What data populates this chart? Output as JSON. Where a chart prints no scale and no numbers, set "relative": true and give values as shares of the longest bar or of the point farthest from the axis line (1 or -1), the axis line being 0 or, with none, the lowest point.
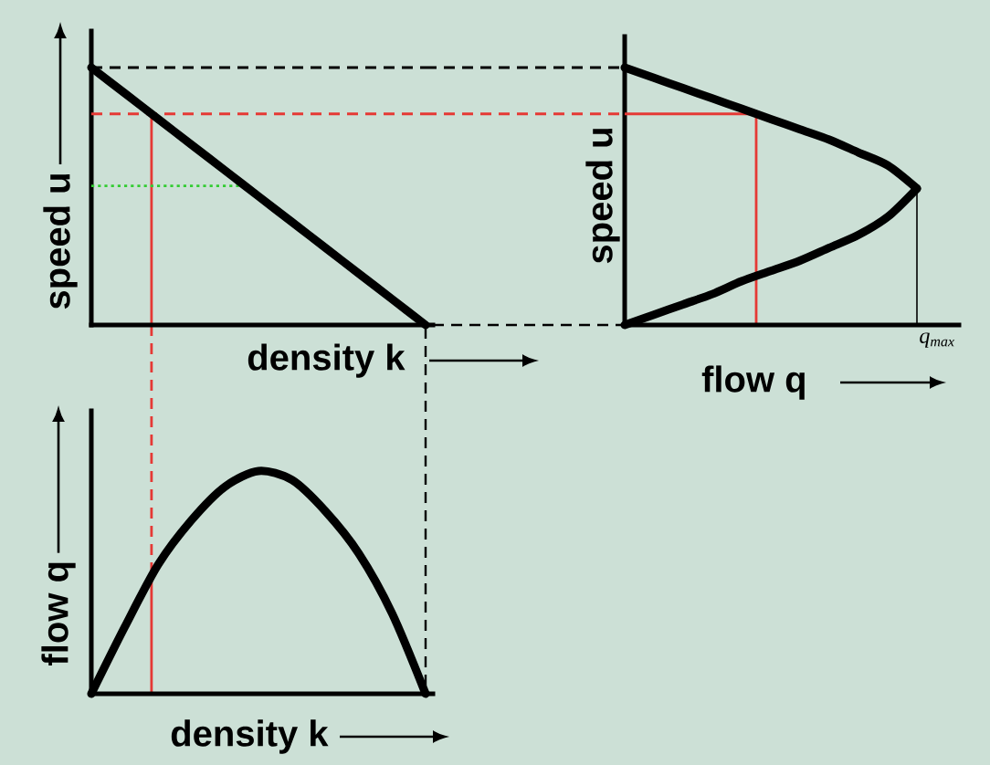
{
  "chart_data": [
    {
      "type": "line",
      "relative": true,
      "xlabel": "density k",
      "ylabel": "speed u",
      "categories": [
        null,
        null,
        null,
        null,
        null,
        null,
        null,
        null,
        null,
        null,
        null
      ],
      "values": [
        1,
        0.9,
        0.8,
        0.7,
        0.6,
        0.5,
        0.4,
        0.3,
        0.2,
        0.1,
        0
      ],
      "color": "#000000",
      "ref_lines": [
        {
          "axis": "y",
          "value": 1,
          "color": "#000000",
          "line_style": "dashed"
        },
        {
          "axis": "y",
          "value": 0.82,
          "color": "#e53935",
          "line_style": "dashed"
        },
        {
          "axis": "y",
          "value": 0.54,
          "color": "#33cc33",
          "line_style": "dotted"
        }
      ]
    },
    {
      "type": "line",
      "relative": true,
      "xlabel": "flow q",
      "ylabel": "speed u",
      "categories": [
        null,
        null,
        null,
        null,
        null,
        null,
        null,
        null,
        null,
        null,
        null
      ],
      "series": [
        {
          "color": "#000000",
          "values": [
            1,
            0.96,
            0.92,
            0.88,
            0.84,
            0.8,
            0.76,
            0.72,
            0.67,
            0.62,
            0.53
          ]
        },
        {
          "color": "#000000",
          "values": [
            0,
            0.04,
            0.08,
            0.12,
            0.17,
            0.21,
            0.25,
            0.3,
            0.35,
            0.42,
            0.53
          ]
        }
      ],
      "ref_lines": [
        {
          "axis": "y",
          "value": 0.82,
          "color": "#e53935",
          "line_style": "solid"
        }
      ],
      "annotations": [
        "q$_{max}$"
      ]
    },
    {
      "type": "line",
      "relative": true,
      "xlabel": "density k",
      "ylabel": "flow q",
      "categories": [
        null,
        null,
        null,
        null,
        null,
        null,
        null,
        null,
        null,
        null,
        null
      ],
      "values": [
        0,
        0.3,
        0.58,
        0.78,
        0.93,
        1,
        0.96,
        0.82,
        0.63,
        0.36,
        0
      ],
      "color": "#000000"
    }
  ]
}
